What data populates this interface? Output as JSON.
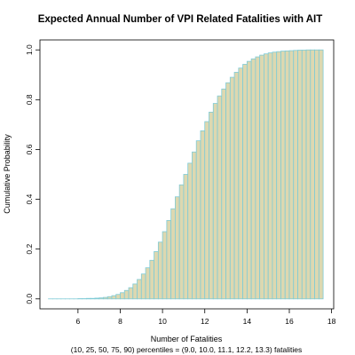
{
  "chart_data": {
    "type": "bar",
    "title": "Expected Annual Number of VPI Related Fatalities with AIT",
    "xlabel": "Number of Fatalities",
    "ylabel": "Cumulative Probability",
    "note": "(10, 25, 50, 75, 90) percentiles = (9.0, 10.0, 11.1, 12.2, 13.3) fatalities",
    "xlim": [
      4.2,
      18.1
    ],
    "ylim": [
      -0.04,
      1.04
    ],
    "x_ticks": [
      6,
      8,
      10,
      12,
      14,
      16,
      18
    ],
    "y_ticks": [
      0.0,
      0.2,
      0.4,
      0.6,
      0.8,
      1.0
    ],
    "bar_fill": "#ddd8b0",
    "bar_edge": "#7fcbd6",
    "x": [
      4.6,
      4.8,
      5.0,
      5.2,
      5.4,
      5.6,
      5.8,
      6.0,
      6.2,
      6.4,
      6.6,
      6.8,
      7.0,
      7.2,
      7.4,
      7.6,
      7.8,
      8.0,
      8.2,
      8.4,
      8.6,
      8.8,
      9.0,
      9.2,
      9.4,
      9.6,
      9.8,
      10.0,
      10.2,
      10.4,
      10.6,
      10.8,
      11.0,
      11.2,
      11.4,
      11.6,
      11.8,
      12.0,
      12.2,
      12.4,
      12.6,
      12.8,
      13.0,
      13.2,
      13.4,
      13.6,
      13.8,
      14.0,
      14.2,
      14.4,
      14.6,
      14.8,
      15.0,
      15.2,
      15.4,
      15.6,
      15.8,
      16.0,
      16.2,
      16.4,
      16.6,
      16.8,
      17.0,
      17.2,
      17.4
    ],
    "values": [
      0.0,
      0.0,
      0.0,
      0.0,
      0.0,
      0.0,
      0.0,
      0.001,
      0.001,
      0.002,
      0.002,
      0.003,
      0.004,
      0.006,
      0.009,
      0.013,
      0.018,
      0.025,
      0.034,
      0.045,
      0.06,
      0.078,
      0.1,
      0.125,
      0.155,
      0.19,
      0.228,
      0.27,
      0.315,
      0.362,
      0.41,
      0.458,
      0.5,
      0.545,
      0.59,
      0.635,
      0.675,
      0.712,
      0.75,
      0.785,
      0.815,
      0.843,
      0.868,
      0.89,
      0.91,
      0.927,
      0.942,
      0.954,
      0.964,
      0.972,
      0.979,
      0.984,
      0.988,
      0.991,
      0.993,
      0.995,
      0.996,
      0.997,
      0.998,
      0.999,
      0.999,
      1.0,
      1.0,
      1.0,
      1.0
    ]
  }
}
